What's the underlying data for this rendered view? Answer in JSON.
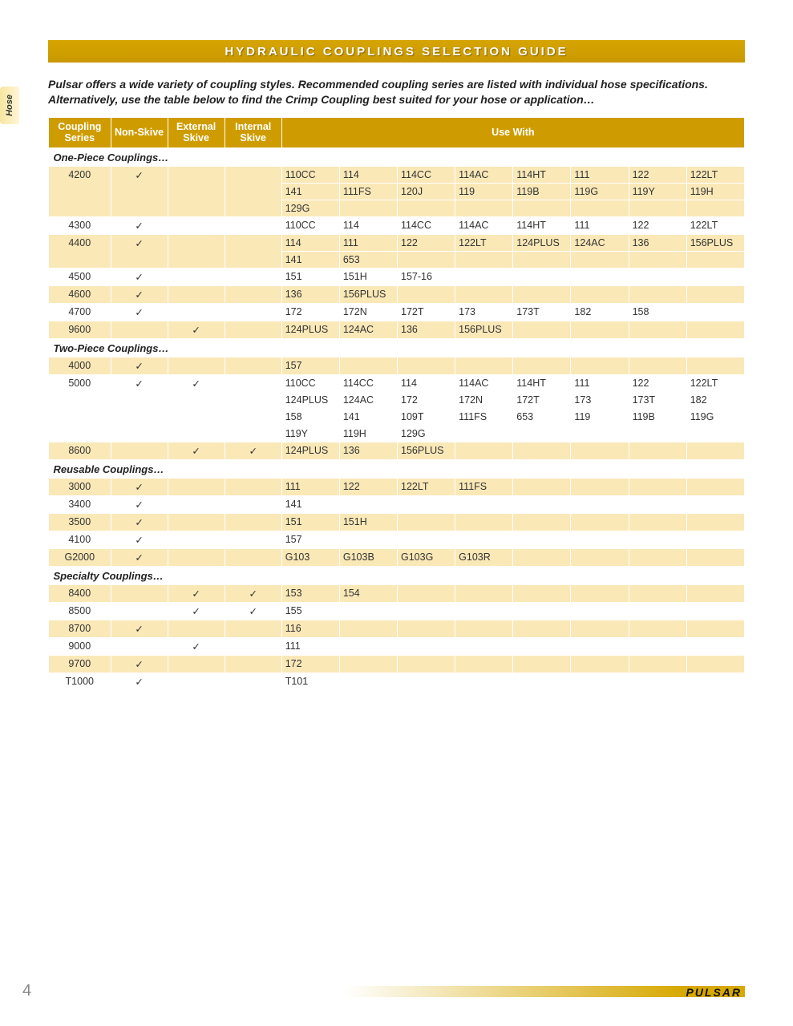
{
  "title": "HYDRAULIC COUPLINGS SELECTION GUIDE",
  "side_tab": "Hose",
  "intro": "Pulsar offers a wide variety of coupling styles. Recommended coupling series are listed with individual hose specifications. Alternatively, use the table below to find the Crimp Coupling best suited for your hose or application…",
  "headers": {
    "series_l1": "Coupling",
    "series_l2": "Series",
    "nonskive": "Non-Skive",
    "ext_l1": "External",
    "ext_l2": "Skive",
    "int_l1": "Internal",
    "int_l2": "Skive",
    "usewith": "Use With"
  },
  "check_glyph": "✓",
  "sections": [
    {
      "category": "One-Piece Couplings…",
      "rows": [
        {
          "series": "4200",
          "nonskive": true,
          "ext": false,
          "int": false,
          "use": [
            "110CC",
            "114",
            "114CC",
            "114AC",
            "114HT",
            "111",
            "122",
            "122LT",
            "141",
            "111FS",
            "120J",
            "119",
            "119B",
            "119G",
            "119Y",
            "119H",
            "129G",
            "",
            "",
            "",
            "",
            "",
            "",
            ""
          ]
        },
        {
          "series": "4300",
          "nonskive": true,
          "ext": false,
          "int": false,
          "use": [
            "110CC",
            "114",
            "114CC",
            "114AC",
            "114HT",
            "111",
            "122",
            "122LT"
          ]
        },
        {
          "series": "4400",
          "nonskive": true,
          "ext": false,
          "int": false,
          "use": [
            "114",
            "111",
            "122",
            "122LT",
            "124PLUS",
            "124AC",
            "136",
            "156PLUS",
            "141",
            "653",
            "",
            "",
            "",
            "",
            "",
            ""
          ]
        },
        {
          "series": "4500",
          "nonskive": true,
          "ext": false,
          "int": false,
          "use": [
            "151",
            "151H",
            "157-16",
            "",
            "",
            "",
            "",
            ""
          ]
        },
        {
          "series": "4600",
          "nonskive": true,
          "ext": false,
          "int": false,
          "use": [
            "136",
            "156PLUS",
            "",
            "",
            "",
            "",
            "",
            ""
          ]
        },
        {
          "series": "4700",
          "nonskive": true,
          "ext": false,
          "int": false,
          "use": [
            "172",
            "172N",
            "172T",
            "173",
            "173T",
            "182",
            "158",
            ""
          ]
        },
        {
          "series": "9600",
          "nonskive": false,
          "ext": true,
          "int": false,
          "use": [
            "124PLUS",
            "124AC",
            "136",
            "156PLUS",
            "",
            "",
            "",
            ""
          ]
        }
      ]
    },
    {
      "category": "Two-Piece Couplings…",
      "rows": [
        {
          "series": "4000",
          "nonskive": true,
          "ext": false,
          "int": false,
          "use": [
            "157",
            "",
            "",
            "",
            "",
            "",
            "",
            ""
          ]
        },
        {
          "series": "5000",
          "nonskive": true,
          "ext": true,
          "int": false,
          "use": [
            "110CC",
            "114CC",
            "114",
            "114AC",
            "114HT",
            "111",
            "122",
            "122LT",
            "124PLUS",
            "124AC",
            "172",
            "172N",
            "172T",
            "173",
            "173T",
            "182",
            "158",
            "141",
            "109T",
            "111FS",
            "653",
            "119",
            "119B",
            "119G",
            "119Y",
            "119H",
            "129G",
            "",
            "",
            "",
            "",
            ""
          ]
        },
        {
          "series": "8600",
          "nonskive": false,
          "ext": true,
          "int": true,
          "use": [
            "124PLUS",
            "136",
            "156PLUS",
            "",
            "",
            "",
            "",
            ""
          ]
        }
      ]
    },
    {
      "category": "Reusable Couplings…",
      "rows": [
        {
          "series": "3000",
          "nonskive": true,
          "ext": false,
          "int": false,
          "use": [
            "111",
            "122",
            "122LT",
            "111FS",
            "",
            "",
            "",
            ""
          ]
        },
        {
          "series": "3400",
          "nonskive": true,
          "ext": false,
          "int": false,
          "use": [
            "141",
            "",
            "",
            "",
            "",
            "",
            "",
            ""
          ]
        },
        {
          "series": "3500",
          "nonskive": true,
          "ext": false,
          "int": false,
          "use": [
            "151",
            "151H",
            "",
            "",
            "",
            "",
            "",
            ""
          ]
        },
        {
          "series": "4100",
          "nonskive": true,
          "ext": false,
          "int": false,
          "use": [
            "157",
            "",
            "",
            "",
            "",
            "",
            "",
            ""
          ]
        },
        {
          "series": "G2000",
          "nonskive": true,
          "ext": false,
          "int": false,
          "use": [
            "G103",
            "G103B",
            "G103G",
            "G103R",
            "",
            "",
            "",
            ""
          ]
        }
      ]
    },
    {
      "category": "Specialty Couplings…",
      "rows": [
        {
          "series": "8400",
          "nonskive": false,
          "ext": true,
          "int": true,
          "use": [
            "153",
            "154",
            "",
            "",
            "",
            "",
            "",
            ""
          ]
        },
        {
          "series": "8500",
          "nonskive": false,
          "ext": true,
          "int": true,
          "use": [
            "155",
            "",
            "",
            "",
            "",
            "",
            "",
            ""
          ]
        },
        {
          "series": "8700",
          "nonskive": true,
          "ext": false,
          "int": false,
          "use": [
            "116",
            "",
            "",
            "",
            "",
            "",
            "",
            ""
          ]
        },
        {
          "series": "9000",
          "nonskive": false,
          "ext": true,
          "int": false,
          "use": [
            "111",
            "",
            "",
            "",
            "",
            "",
            "",
            ""
          ]
        },
        {
          "series": "9700",
          "nonskive": true,
          "ext": false,
          "int": false,
          "use": [
            "172",
            "",
            "",
            "",
            "",
            "",
            "",
            ""
          ]
        },
        {
          "series": "T1000",
          "nonskive": true,
          "ext": false,
          "int": false,
          "use": [
            "T101",
            "",
            "",
            "",
            "",
            "",
            "",
            ""
          ]
        }
      ]
    }
  ],
  "page_number": "4",
  "brand": "PULSAR",
  "colors": {
    "header_bg": "#cf9c00",
    "title_bg": "#d1a100",
    "stripe_odd": "#fae8b7",
    "stripe_even": "#ffffff"
  }
}
